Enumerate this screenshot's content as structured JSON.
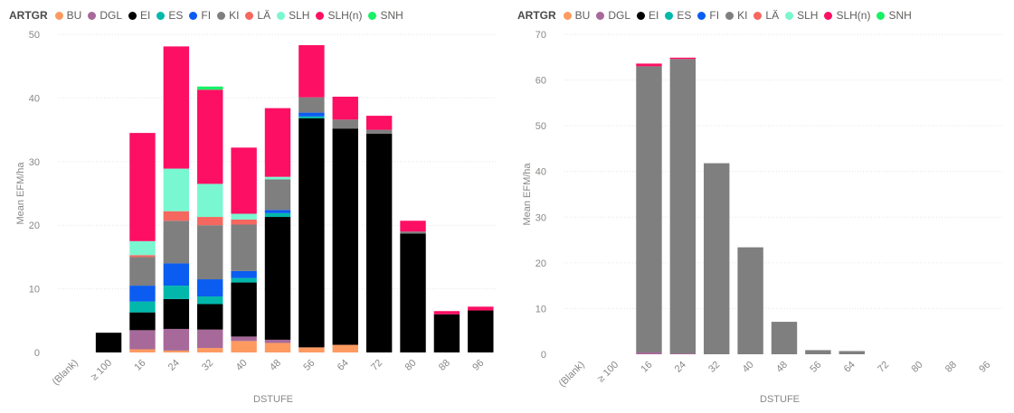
{
  "legend": {
    "title": "ARTGR",
    "items": [
      {
        "label": "BU",
        "color": "#fd9a60"
      },
      {
        "label": "DGL",
        "color": "#a66999"
      },
      {
        "label": "EI",
        "color": "#000000"
      },
      {
        "label": "ES",
        "color": "#01b8aa"
      },
      {
        "label": "FI",
        "color": "#0b5cf0"
      },
      {
        "label": "KI",
        "color": "#7f7f7f"
      },
      {
        "label": "LÄ",
        "color": "#f5675f"
      },
      {
        "label": "SLH",
        "color": "#79f7d0"
      },
      {
        "label": "SLH(n)",
        "color": "#fd0f63"
      },
      {
        "label": "SNH",
        "color": "#18f066"
      }
    ]
  },
  "chart_data": [
    {
      "type": "bar",
      "stacked": true,
      "xlabel": "DSTUFE",
      "ylabel": "Mean EFM/ha",
      "ylim": [
        0,
        50
      ],
      "yticks": [
        0,
        10,
        20,
        30,
        40,
        50
      ],
      "categories": [
        "(Blank)",
        "≥ 100",
        "16",
        "24",
        "32",
        "40",
        "48",
        "56",
        "64",
        "72",
        "80",
        "88",
        "96"
      ],
      "series": [
        {
          "name": "BU",
          "values": [
            0,
            0,
            0.5,
            0.3,
            0.7,
            1.8,
            1.5,
            0.8,
            1.2,
            0,
            0,
            0,
            0
          ]
        },
        {
          "name": "DGL",
          "values": [
            0,
            0,
            3.0,
            3.4,
            2.9,
            0.7,
            0.5,
            0,
            0,
            0,
            0,
            0,
            0
          ]
        },
        {
          "name": "EI",
          "values": [
            0,
            3.1,
            2.8,
            4.7,
            4.0,
            8.5,
            19.3,
            36.0,
            34.0,
            34.4,
            18.7,
            6.0,
            6.6
          ]
        },
        {
          "name": "ES",
          "values": [
            0,
            0,
            1.7,
            2.1,
            1.2,
            0.7,
            0.6,
            0.3,
            0,
            0,
            0,
            0,
            0
          ]
        },
        {
          "name": "FI",
          "values": [
            0,
            0,
            2.5,
            3.5,
            2.7,
            1.1,
            0.5,
            0.6,
            0,
            0,
            0,
            0,
            0
          ]
        },
        {
          "name": "KI",
          "values": [
            0,
            0,
            4.5,
            6.7,
            8.5,
            7.3,
            4.8,
            2.4,
            1.4,
            0.6,
            0.3,
            0,
            0
          ]
        },
        {
          "name": "LÄ",
          "values": [
            0,
            0,
            0.3,
            1.5,
            1.3,
            0.8,
            0,
            0,
            0,
            0,
            0,
            0,
            0
          ]
        },
        {
          "name": "SLH",
          "values": [
            0,
            0,
            2.2,
            6.7,
            5.2,
            0.9,
            0.4,
            0,
            0,
            0,
            0,
            0,
            0
          ]
        },
        {
          "name": "SLH(n)",
          "values": [
            0,
            0,
            17.0,
            19.2,
            14.8,
            10.4,
            10.8,
            8.2,
            3.6,
            2.2,
            1.7,
            0.5,
            0.6
          ]
        },
        {
          "name": "SNH",
          "values": [
            0,
            0,
            0,
            0,
            0.5,
            0,
            0,
            0,
            0,
            0,
            0,
            0,
            0
          ]
        }
      ]
    },
    {
      "type": "bar",
      "stacked": true,
      "xlabel": "DSTUFE",
      "ylabel": "Mean EFM/ha",
      "ylim": [
        0,
        70
      ],
      "yticks": [
        0,
        10,
        20,
        30,
        40,
        50,
        60,
        70
      ],
      "categories": [
        "(Blank)",
        "≥ 100",
        "16",
        "24",
        "32",
        "40",
        "48",
        "56",
        "64",
        "72",
        "80",
        "88",
        "96"
      ],
      "series": [
        {
          "name": "BU",
          "values": [
            0,
            0,
            0,
            0,
            0,
            0,
            0,
            0,
            0,
            0,
            0,
            0,
            0
          ]
        },
        {
          "name": "DGL",
          "values": [
            0,
            0,
            0.4,
            0.2,
            0,
            0,
            0,
            0,
            0,
            0,
            0,
            0,
            0
          ]
        },
        {
          "name": "EI",
          "values": [
            0,
            0,
            0,
            0,
            0,
            0,
            0,
            0,
            0,
            0,
            0,
            0,
            0
          ]
        },
        {
          "name": "ES",
          "values": [
            0,
            0,
            0,
            0,
            0,
            0,
            0,
            0,
            0,
            0,
            0,
            0,
            0
          ]
        },
        {
          "name": "FI",
          "values": [
            0,
            0,
            0,
            0,
            0,
            0,
            0,
            0,
            0,
            0,
            0,
            0,
            0
          ]
        },
        {
          "name": "KI",
          "values": [
            0,
            0,
            62.6,
            64.4,
            41.8,
            23.4,
            7.1,
            0.9,
            0.7,
            0,
            0,
            0,
            0
          ]
        },
        {
          "name": "LÄ",
          "values": [
            0,
            0,
            0,
            0,
            0,
            0,
            0,
            0,
            0,
            0,
            0,
            0,
            0
          ]
        },
        {
          "name": "SLH",
          "values": [
            0,
            0,
            0,
            0,
            0,
            0,
            0,
            0,
            0,
            0,
            0,
            0,
            0
          ]
        },
        {
          "name": "SLH(n)",
          "values": [
            0,
            0,
            0.6,
            0.3,
            0,
            0,
            0,
            0,
            0,
            0,
            0,
            0,
            0
          ]
        },
        {
          "name": "SNH",
          "values": [
            0,
            0,
            0,
            0,
            0,
            0,
            0,
            0,
            0,
            0,
            0,
            0,
            0
          ]
        }
      ]
    }
  ]
}
